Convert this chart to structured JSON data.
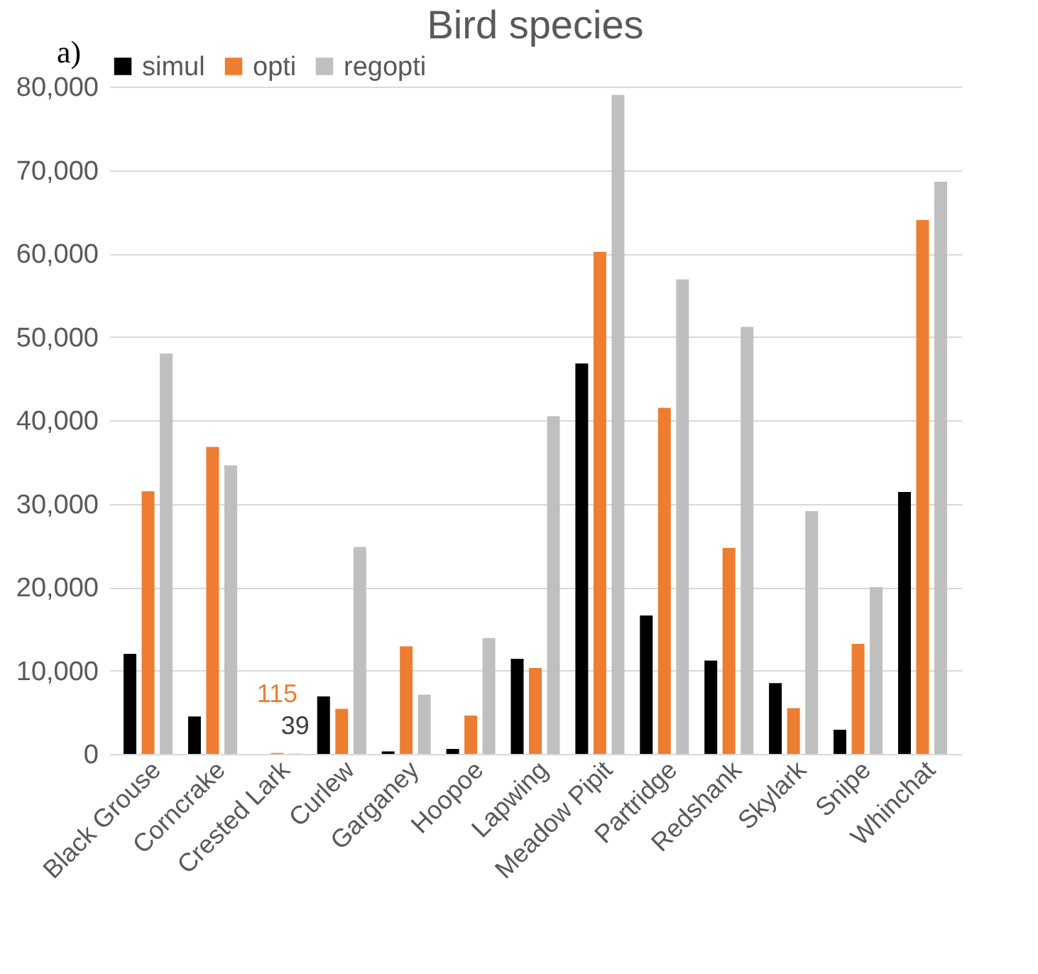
{
  "chart_data": {
    "type": "bar",
    "title": "Bird species",
    "annotations": [
      "a)"
    ],
    "categories": [
      "Black Grouse",
      "Corncrake",
      "Crested Lark",
      "Curlew",
      "Garganey",
      "Hoopoe",
      "Lapwing",
      "Meadow Pipit",
      "Partridge",
      "Redshank",
      "Skylark",
      "Snipe",
      "Whinchat"
    ],
    "series": [
      {
        "name": "simul",
        "color": "#000000",
        "values": [
          12000,
          4500,
          0,
          6900,
          300,
          600,
          11400,
          46800,
          16600,
          11200,
          8500,
          2900,
          31400
        ]
      },
      {
        "name": "opti",
        "color": "#ed7d31",
        "values": [
          31500,
          36800,
          115,
          5400,
          12900,
          4600,
          10300,
          60200,
          41500,
          24700,
          5500,
          13200,
          64000
        ],
        "value_labels": [
          null,
          null,
          "115",
          null,
          null,
          null,
          null,
          null,
          null,
          null,
          null,
          null,
          null
        ]
      },
      {
        "name": "regopti",
        "color": "#bfbfbf",
        "values": [
          48000,
          34600,
          39,
          24800,
          7100,
          13900,
          40500,
          79000,
          56900,
          51200,
          29100,
          20000,
          68600
        ],
        "value_labels": [
          null,
          null,
          "39",
          null,
          null,
          null,
          null,
          null,
          null,
          null,
          null,
          null,
          null
        ]
      }
    ],
    "ylim": [
      0,
      80000
    ],
    "yticks": [
      0,
      {
        "value": 10000,
        "label": "10,000"
      },
      {
        "value": 20000,
        "label": "20,000"
      },
      {
        "value": 30000,
        "label": "30,000"
      },
      {
        "value": 40000,
        "label": "40,000"
      },
      {
        "value": 50000,
        "label": "50,000"
      },
      {
        "value": 60000,
        "label": "60,000"
      },
      {
        "value": 70000,
        "label": "70,000"
      },
      {
        "value": 80000,
        "label": "80,000"
      }
    ],
    "grid": "y",
    "legend": "top left"
  }
}
